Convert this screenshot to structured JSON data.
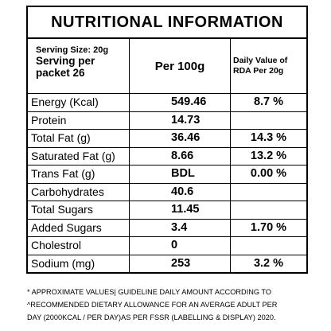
{
  "title": "NUTRITIONAL INFORMATION",
  "header": {
    "serving_size": "Serving Size: 20g",
    "serving_per_packet": "Serving per packet 26",
    "per_100g": "Per 100g",
    "daily_value": "Daily Value of RDA Per 20g"
  },
  "table": {
    "rows": [
      [
        "Energy (Kcal)",
        "549.46",
        "8.7 %"
      ],
      [
        "Protein",
        "14.73",
        ""
      ],
      [
        "Total Fat (g)",
        "36.46",
        "14.3 %"
      ],
      [
        "Saturated Fat (g)",
        "8.66",
        "13.2 %"
      ],
      [
        "Trans Fat (g)",
        "BDL",
        "0.00 %"
      ],
      [
        "Carbohydrates",
        "40.6",
        ""
      ],
      [
        "Total Sugars",
        "11.45",
        ""
      ],
      [
        "Added Sugars",
        "3.4",
        "1.70 %"
      ],
      [
        "Cholestrol",
        "0",
        ""
      ],
      [
        "Sodium (mg)",
        "253",
        "3.2 %"
      ]
    ]
  },
  "footnote": [
    "* APPROXIMATE VALUES| GUIDELINE DAILY AMOUNT ACCORDING TO",
    "^RECOMMENDED DIETARY ALLOWANCE FOR AN AVERAGE ADULT PER",
    "DAY (2000KCAL / PER DAY)AS PER FSSR (LABELLING & DISPLAY) 2020."
  ]
}
